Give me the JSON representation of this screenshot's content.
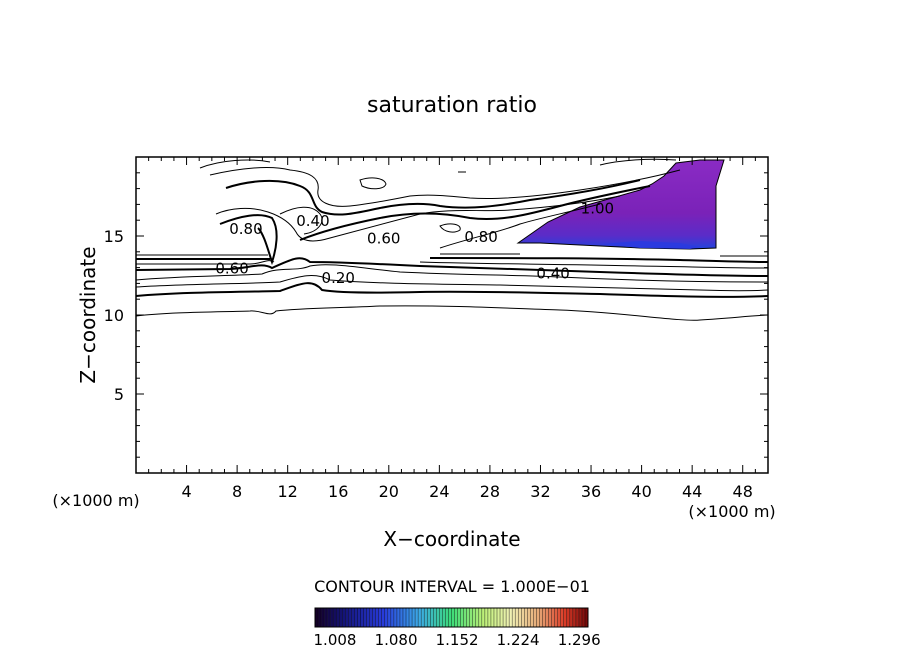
{
  "chart_data": {
    "type": "contour",
    "title": "saturation ratio",
    "xlabel": "X−coordinate",
    "ylabel": "Z−coordinate",
    "x_unit_left": "(×1000 m)",
    "x_unit_right": "(×1000 m)",
    "xlim": [
      0,
      50
    ],
    "ylim": [
      0,
      20
    ],
    "x_ticks": [
      4,
      8,
      12,
      16,
      20,
      24,
      28,
      32,
      36,
      40,
      44,
      48
    ],
    "y_ticks": [
      5,
      10,
      15
    ],
    "contour_interval_text": "CONTOUR INTERVAL = 1.000E−01",
    "colorbar_ticks": [
      "1.008",
      "1.080",
      "1.152",
      "1.224",
      "1.296"
    ],
    "colorbar_range": [
      1.008,
      1.33
    ],
    "contour_labels": [
      {
        "text": "0.80",
        "x": 8.7,
        "z": 15.5
      },
      {
        "text": "0.40",
        "x": 14.0,
        "z": 16.0
      },
      {
        "text": "0.60",
        "x": 19.6,
        "z": 14.9
      },
      {
        "text": "0.80",
        "x": 27.3,
        "z": 15.0
      },
      {
        "text": "1.00",
        "x": 36.5,
        "z": 16.8
      },
      {
        "text": "0.60",
        "x": 7.6,
        "z": 13.0
      },
      {
        "text": "0.20",
        "x": 16.0,
        "z": 12.4
      },
      {
        "text": "0.40",
        "x": 33.0,
        "z": 12.7
      }
    ],
    "supersaturated_region": {
      "x_range": [
        30,
        46
      ],
      "z_range": [
        14.2,
        19.5
      ],
      "max_value_approx": 1.05
    },
    "grid": false,
    "legend": "colorbar-bottom"
  }
}
